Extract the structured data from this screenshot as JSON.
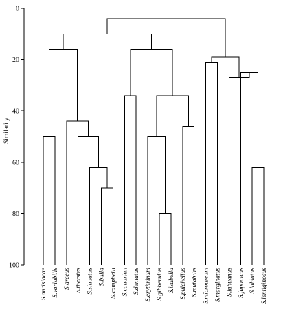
{
  "chart_data": {
    "type": "dendrogram",
    "ylabel": "Similarity",
    "ylim": [
      0,
      100
    ],
    "yticks": [
      0,
      20,
      40,
      60,
      80,
      100
    ],
    "leaves": [
      "S.aurisiacae",
      "S.variabilis",
      "S.arceus",
      "S.therstes",
      "S.sinuatus",
      "S.bulla",
      "S.campbelli",
      "S.canarian",
      "S.dentatus",
      "S.erythrinum",
      "S.gibberulus",
      "S.isabella",
      "S.pulchellus",
      "S.mutabilis",
      "S.microureum",
      "S.marginatus",
      "S.luhuanus",
      "S.japonicus",
      "S.labiatus",
      "S.lentiginosus"
    ],
    "merges": [
      {
        "left": "L0",
        "right": "L1",
        "height": 50
      },
      {
        "left": "L5",
        "right": "L6",
        "height": 70
      },
      {
        "left": "L4",
        "right": "N1",
        "height": 62
      },
      {
        "left": "L3",
        "right": "N2",
        "height": 50
      },
      {
        "left": "L2",
        "right": "N3",
        "height": 44
      },
      {
        "left": "N0",
        "right": "N4",
        "height": 16
      },
      {
        "left": "L7",
        "right": "L8",
        "height": 34
      },
      {
        "left": "L10",
        "right": "L11",
        "height": 80
      },
      {
        "left": "L9",
        "right": "N7",
        "height": 50
      },
      {
        "left": "L12",
        "right": "L13",
        "height": 46
      },
      {
        "left": "N8",
        "right": "N9",
        "height": 34
      },
      {
        "left": "N6",
        "right": "N10",
        "height": 16
      },
      {
        "left": "N5",
        "right": "N11",
        "height": 10
      },
      {
        "left": "L14",
        "right": "L15",
        "height": 21
      },
      {
        "left": "L18",
        "right": "L19",
        "height": 62
      },
      {
        "left": "L17",
        "right": "N14",
        "height": 25
      },
      {
        "left": "L16",
        "right": "N15",
        "height": 27
      },
      {
        "left": "N13",
        "right": "N16",
        "height": 19
      },
      {
        "left": "N12",
        "right": "N17",
        "height": 4
      }
    ]
  }
}
